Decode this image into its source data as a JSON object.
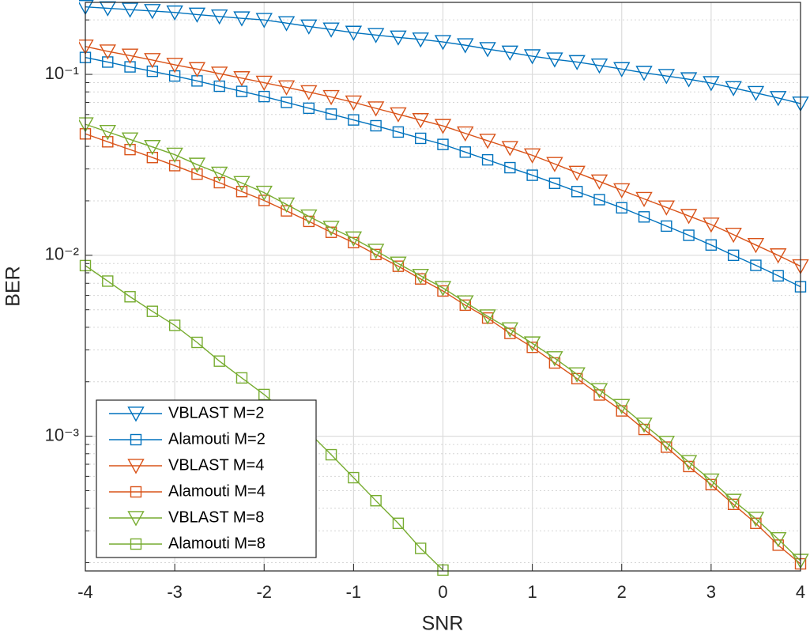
{
  "chart_data": {
    "type": "line",
    "xlabel": "SNR",
    "ylabel": "BER",
    "yscale": "log",
    "grid": true,
    "legend": "lower left",
    "xlim": [
      -4,
      4
    ],
    "ylim": [
      0.00018,
      0.25
    ],
    "xticks": [
      -4,
      -3,
      -2,
      -1,
      0,
      1,
      2,
      3,
      4
    ],
    "yticks": [
      {
        "value": 0.001,
        "label": "10⁻³"
      },
      {
        "value": 0.01,
        "label": "10⁻²"
      },
      {
        "value": 0.1,
        "label": "10⁻¹"
      }
    ],
    "yminorticks": [
      0.0002,
      0.0003,
      0.0004,
      0.0005,
      0.0006,
      0.0007,
      0.0008,
      0.0009,
      0.002,
      0.003,
      0.004,
      0.005,
      0.006,
      0.007,
      0.008,
      0.009,
      0.02,
      0.03,
      0.04,
      0.05,
      0.06,
      0.07,
      0.08,
      0.09,
      0.2
    ],
    "x": [
      -4,
      -3.75,
      -3.5,
      -3.25,
      -3,
      -2.75,
      -2.5,
      -2.25,
      -2,
      -1.75,
      -1.5,
      -1.25,
      -1,
      -0.75,
      -0.5,
      -0.25,
      0,
      0.25,
      0.5,
      0.75,
      1,
      1.25,
      1.5,
      1.75,
      2,
      2.25,
      2.5,
      2.75,
      3,
      3.25,
      3.5,
      3.75,
      4
    ],
    "series": [
      {
        "name": "VBLAST M=2",
        "color": "#0072BD",
        "marker": "triangle-down",
        "values": [
          0.236,
          0.232,
          0.228,
          0.224,
          0.22,
          0.214,
          0.209,
          0.204,
          0.2,
          0.192,
          0.184,
          0.177,
          0.17,
          0.165,
          0.16,
          0.156,
          0.151,
          0.145,
          0.138,
          0.132,
          0.126,
          0.121,
          0.117,
          0.112,
          0.107,
          0.102,
          0.098,
          0.094,
          0.0895,
          0.084,
          0.079,
          0.074,
          0.069
        ]
      },
      {
        "name": "Alamouti M=2",
        "color": "#0072BD",
        "marker": "square",
        "values": [
          0.124,
          0.117,
          0.11,
          0.104,
          0.098,
          0.092,
          0.086,
          0.0805,
          0.0754,
          0.07,
          0.065,
          0.0603,
          0.056,
          0.052,
          0.048,
          0.0443,
          0.041,
          0.0372,
          0.0337,
          0.0305,
          0.0277,
          0.025,
          0.0225,
          0.0203,
          0.0183,
          0.0163,
          0.0145,
          0.0129,
          0.0114,
          0.01,
          0.0088,
          0.0077,
          0.0067
        ]
      },
      {
        "name": "VBLAST M=4",
        "color": "#D95319",
        "marker": "triangle-down",
        "values": [
          0.1426,
          0.134,
          0.127,
          0.12,
          0.113,
          0.107,
          0.101,
          0.0953,
          0.09,
          0.0848,
          0.0798,
          0.075,
          0.07,
          0.0649,
          0.0602,
          0.0559,
          0.0519,
          0.0472,
          0.043,
          0.0392,
          0.0357,
          0.032,
          0.0286,
          0.0256,
          0.0229,
          0.0205,
          0.0184,
          0.0165,
          0.0148,
          0.013,
          0.0114,
          0.01,
          0.0087
        ]
      },
      {
        "name": "Alamouti M=4",
        "color": "#D95319",
        "marker": "square",
        "values": [
          0.0469,
          0.0424,
          0.0384,
          0.0347,
          0.0313,
          0.0281,
          0.0252,
          0.0225,
          0.0201,
          0.0176,
          0.0154,
          0.0134,
          0.01175,
          0.0101,
          0.0087,
          0.0074,
          0.00635,
          0.0053,
          0.0045,
          0.0037,
          0.0031,
          0.00254,
          0.00208,
          0.00169,
          0.00138,
          0.00109,
          0.00087,
          0.00068,
          0.00054,
          0.00042,
          0.00033,
          0.00025,
          0.000197
        ]
      },
      {
        "name": "VBLAST M=8",
        "color": "#77AC30",
        "marker": "triangle-down",
        "values": [
          0.053,
          0.0481,
          0.0437,
          0.0397,
          0.036,
          0.0317,
          0.0283,
          0.0251,
          0.0222,
          0.0191,
          0.0164,
          0.0142,
          0.0124,
          0.0106,
          0.009,
          0.0077,
          0.0066,
          0.0055,
          0.0046,
          0.0039,
          0.00326,
          0.0027,
          0.0022,
          0.0018,
          0.00147,
          0.00116,
          0.00092,
          0.00072,
          0.00057,
          0.00044,
          0.00035,
          0.00027,
          0.000205
        ]
      },
      {
        "name": "Alamouti M=8",
        "color": "#77AC30",
        "marker": "square",
        "values": [
          0.00877,
          0.0072,
          0.0059,
          0.0049,
          0.0041,
          0.0033,
          0.0026,
          0.0021,
          0.0017,
          0.00134,
          0.00105,
          0.00079,
          0.00059,
          0.00044,
          0.00033,
          0.00024,
          0.000182,
          null,
          null,
          null,
          null,
          null,
          null,
          null,
          null,
          null,
          null,
          null,
          null,
          null,
          null,
          null,
          null
        ]
      }
    ]
  }
}
